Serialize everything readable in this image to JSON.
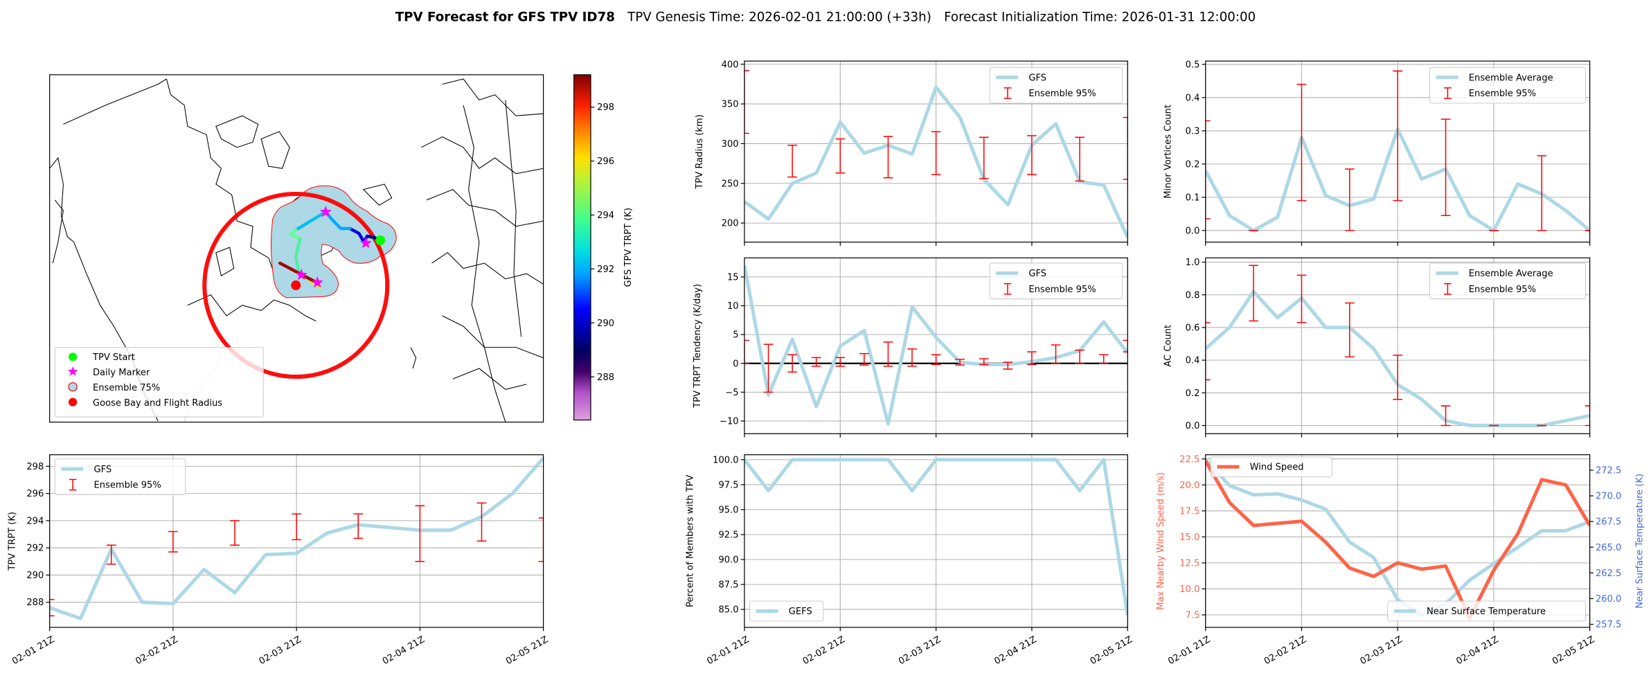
{
  "header": {
    "title_bold": "TPV Forecast for GFS TPV ID78",
    "genesis": "TPV Genesis Time: 2026-02-01 21:00:00 (+33h)",
    "init": "Forecast Initialization Time: 2026-01-31 12:00:00"
  },
  "colors": {
    "gfs_line": "#add8e6",
    "errorbar": "#ff0000",
    "wind": "#ff6347",
    "temp_axis": "#4169e1",
    "grid": "#b0b0b0"
  },
  "chart_data": [
    {
      "id": "map",
      "type": "map",
      "legend": [
        "TPV Start",
        "Daily Marker",
        "Ensemble 75%",
        "Goose Bay and Flight Radius"
      ],
      "legend_placement": "lower-left",
      "colorbar": {
        "label": "GFS TPV TRPT (K)",
        "range": [
          286.4,
          299.2
        ],
        "ticks": [
          288,
          290,
          292,
          294,
          296,
          298
        ],
        "tick_labels": [
          "288",
          "290",
          "292",
          "294",
          "296",
          "298"
        ]
      }
    },
    {
      "id": "radius",
      "type": "line",
      "ylabel": "TPV Radius (km)",
      "ylim": [
        176,
        404
      ],
      "yticks": [
        200,
        250,
        300,
        350,
        400
      ],
      "ytick_labels": [
        "200",
        "250",
        "300",
        "350",
        "400"
      ],
      "xticks": [
        0,
        4,
        8,
        12,
        16
      ],
      "series": [
        {
          "name": "GFS",
          "values": [
            227,
            205,
            250,
            263,
            327,
            288,
            298,
            287,
            371,
            333,
            255,
            223,
            298,
            325,
            252,
            248,
            182
          ]
        }
      ],
      "errorbars": {
        "name": "Ensemble 95%",
        "points": [
          [
            0,
            313,
            392
          ],
          [
            2,
            258,
            298
          ],
          [
            4,
            263,
            306
          ],
          [
            6,
            257,
            309
          ],
          [
            8,
            261,
            315
          ],
          [
            10,
            256,
            308
          ],
          [
            12,
            261,
            310
          ],
          [
            14,
            253,
            308
          ],
          [
            16,
            255,
            333
          ]
        ]
      },
      "legend_placement": "upper-right"
    },
    {
      "id": "tendency",
      "type": "line",
      "ylabel": "TPV TRPT Tendency (K/day)",
      "ylim": [
        -12.2,
        18.3
      ],
      "yticks": [
        -10,
        -5,
        0,
        5,
        10,
        15
      ],
      "ytick_labels": [
        "−10",
        "−5",
        "0",
        "5",
        "10",
        "15"
      ],
      "xticks": [
        0,
        4,
        8,
        12,
        16
      ],
      "zero_line": 0,
      "series": [
        {
          "name": "GFS",
          "values": [
            17,
            -5.5,
            4.2,
            -7.5,
            3,
            5.7,
            -10.5,
            9.8,
            4.5,
            0.2,
            -0.2,
            -0.2,
            0.3,
            1,
            2.2,
            7.2,
            1.8
          ]
        }
      ],
      "errorbars": {
        "name": "Ensemble 95%",
        "points": [
          [
            0,
            0,
            4
          ],
          [
            1,
            -5,
            3.3
          ],
          [
            2,
            -1.5,
            1.5
          ],
          [
            3,
            -0.5,
            1
          ],
          [
            4,
            -0.5,
            1
          ],
          [
            5,
            -0.3,
            1.7
          ],
          [
            6,
            -0.5,
            3.7
          ],
          [
            7,
            -0.5,
            2.5
          ],
          [
            8,
            -0.2,
            1.5
          ],
          [
            9,
            -0.3,
            0.7
          ],
          [
            10,
            -0.2,
            0.8
          ],
          [
            11,
            -1,
            0.2
          ],
          [
            12,
            -0.2,
            2
          ],
          [
            13,
            0,
            3.2
          ],
          [
            14,
            0,
            2.3
          ],
          [
            15,
            0,
            1.5
          ],
          [
            16,
            2,
            4
          ]
        ]
      },
      "legend_placement": "upper-right"
    },
    {
      "id": "minor",
      "type": "line",
      "ylabel": "Minor Vortices Count",
      "ylim": [
        -0.035,
        0.51
      ],
      "yticks": [
        0,
        0.1,
        0.2,
        0.3,
        0.4,
        0.5
      ],
      "ytick_labels": [
        "0.0",
        "0.1",
        "0.2",
        "0.3",
        "0.4",
        "0.5"
      ],
      "xticks": [
        0,
        4,
        8,
        12,
        16
      ],
      "series": [
        {
          "name": "Ensemble Average",
          "values": [
            0.18,
            0.045,
            0,
            0.04,
            0.28,
            0.105,
            0.075,
            0.095,
            0.305,
            0.155,
            0.185,
            0.045,
            0,
            0.14,
            0.11,
            0.06,
            0
          ]
        }
      ],
      "errorbars": {
        "name": "Ensemble 95%",
        "points": [
          [
            0,
            0.035,
            0.33
          ],
          [
            2,
            0,
            0
          ],
          [
            4,
            0.09,
            0.44
          ],
          [
            6,
            0,
            0.185
          ],
          [
            8,
            0.09,
            0.48
          ],
          [
            10,
            0.045,
            0.335
          ],
          [
            12,
            0,
            0
          ],
          [
            14,
            0,
            0.225
          ],
          [
            16,
            0,
            0
          ]
        ]
      },
      "legend_placement": "upper-right"
    },
    {
      "id": "ac",
      "type": "line",
      "ylabel": "AC Count",
      "ylim": [
        -0.05,
        1.026
      ],
      "yticks": [
        0,
        0.2,
        0.4,
        0.6,
        0.8,
        1.0
      ],
      "ytick_labels": [
        "0.0",
        "0.2",
        "0.4",
        "0.6",
        "0.8",
        "1.0"
      ],
      "xticks": [
        0,
        4,
        8,
        12,
        16
      ],
      "series": [
        {
          "name": "Ensemble Average",
          "values": [
            0.47,
            0.6,
            0.82,
            0.66,
            0.78,
            0.6,
            0.6,
            0.47,
            0.25,
            0.16,
            0.03,
            0,
            0,
            0,
            0,
            0.03,
            0.06
          ]
        }
      ],
      "errorbars": {
        "name": "Ensemble 95%",
        "points": [
          [
            0,
            0.28,
            0.63
          ],
          [
            2,
            0.64,
            0.98
          ],
          [
            4,
            0.63,
            0.92
          ],
          [
            6,
            0.42,
            0.75
          ],
          [
            8,
            0.16,
            0.43
          ],
          [
            10,
            0,
            0.12
          ],
          [
            12,
            0,
            0
          ],
          [
            14,
            0,
            0
          ],
          [
            16,
            0,
            0.12
          ]
        ]
      },
      "legend_placement": "upper-right"
    },
    {
      "id": "trpt",
      "type": "line",
      "ylabel": "TPV TRPT (K)",
      "ylim": [
        286.15,
        298.85
      ],
      "yticks": [
        288,
        290,
        292,
        294,
        296,
        298
      ],
      "ytick_labels": [
        "288",
        "290",
        "292",
        "294",
        "296",
        "298"
      ],
      "xticks": [
        0,
        4,
        8,
        12,
        16
      ],
      "xtick_labels": [
        "02-01 21Z",
        "02-02 21Z",
        "02-03 21Z",
        "02-04 21Z",
        "02-05 21Z"
      ],
      "series": [
        {
          "name": "GFS",
          "values": [
            287.6,
            286.8,
            291.9,
            288.0,
            287.9,
            290.4,
            288.7,
            291.5,
            291.6,
            293.1,
            293.7,
            293.5,
            293.3,
            293.3,
            294.3,
            296.0,
            298.6
          ]
        }
      ],
      "errorbars": {
        "name": "Ensemble 95%",
        "points": [
          [
            0,
            287.0,
            288.2
          ],
          [
            2,
            290.8,
            292.2
          ],
          [
            4,
            291.7,
            293.2
          ],
          [
            6,
            292.2,
            294.0
          ],
          [
            8,
            292.6,
            294.5
          ],
          [
            10,
            292.7,
            294.5
          ],
          [
            12,
            291.0,
            295.1
          ],
          [
            14,
            292.5,
            295.3
          ],
          [
            16,
            291.0,
            294.2
          ]
        ]
      },
      "legend_placement": "upper-left"
    },
    {
      "id": "percent",
      "type": "line",
      "ylabel": "Percent of Members with TPV",
      "ylim": [
        83.2,
        100.5
      ],
      "yticks": [
        85,
        87.5,
        90,
        92.5,
        95,
        97.5,
        100
      ],
      "ytick_labels": [
        "85.0",
        "87.5",
        "90.0",
        "92.5",
        "95.0",
        "97.5",
        "100.0"
      ],
      "xticks": [
        0,
        4,
        8,
        12,
        16
      ],
      "xtick_labels": [
        "02-01 21Z",
        "02-02 21Z",
        "02-03 21Z",
        "02-04 21Z",
        "02-05 21Z"
      ],
      "series": [
        {
          "name": "GEFS",
          "values": [
            100,
            96.9,
            100,
            100,
            100,
            100,
            100,
            96.9,
            100,
            100,
            100,
            100,
            100,
            100,
            96.9,
            100,
            84.4
          ]
        }
      ],
      "legend_placement": "lower-left"
    },
    {
      "id": "wind",
      "type": "line",
      "ylabel": "Max Nearby Wind Speed (m/s)",
      "ylim": [
        6.3,
        22.9
      ],
      "yticks": [
        7.5,
        10,
        12.5,
        15,
        17.5,
        20,
        22.5
      ],
      "ytick_labels": [
        "7.5",
        "10.0",
        "12.5",
        "15.0",
        "17.5",
        "20.0",
        "22.5"
      ],
      "xticks": [
        0,
        4,
        8,
        12,
        16
      ],
      "xtick_labels": [
        "02-01 21Z",
        "02-02 21Z",
        "02-03 21Z",
        "02-04 21Z",
        "02-05 21Z"
      ],
      "series": [
        {
          "name": "Wind Speed",
          "values": [
            22.3,
            18.3,
            16.1,
            16.3,
            16.5,
            14.5,
            12.0,
            11.2,
            12.5,
            11.9,
            12.2,
            7.2,
            11.8,
            15.3,
            20.5,
            20.0,
            16.1
          ]
        }
      ],
      "legend_placement": "upper-left",
      "y2": {
        "ylabel": "Near Surface Temperature (K)",
        "ylim": [
          257.2,
          274.0
        ],
        "yticks": [
          257.5,
          260,
          262.5,
          265,
          267.5,
          270,
          272.5
        ],
        "ytick_labels": [
          "257.5",
          "260.0",
          "262.5",
          "265.0",
          "267.5",
          "270.0",
          "272.5"
        ],
        "series": [
          {
            "name": "Near Surface Temperature",
            "values": [
              273.5,
              271.0,
              270.1,
              270.2,
              269.6,
              268.7,
              265.5,
              264.0,
              259.9,
              258.4,
              259.5,
              261.8,
              263.4,
              265.0,
              266.6,
              266.6,
              267.5
            ]
          }
        ],
        "legend_placement": "lower-right"
      }
    }
  ]
}
